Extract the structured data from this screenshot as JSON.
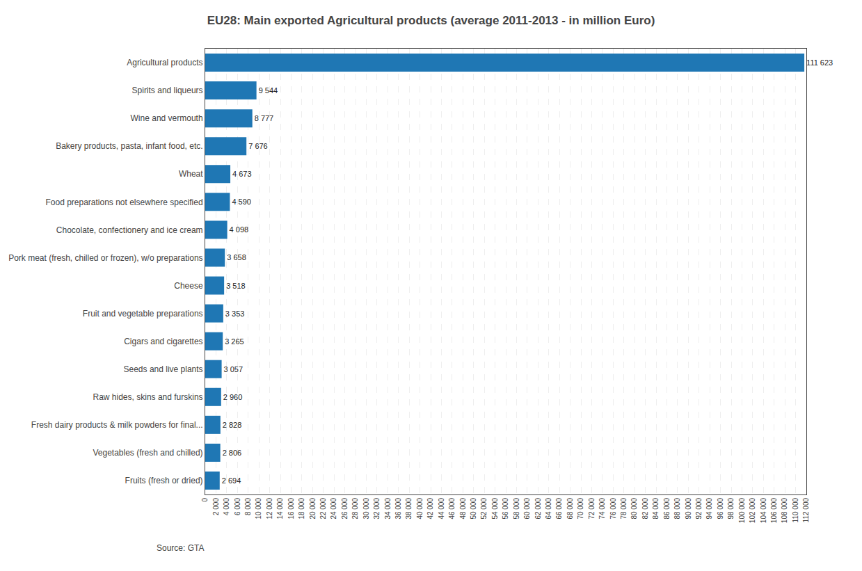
{
  "chart_data": {
    "type": "bar",
    "orientation": "horizontal",
    "title": "EU28: Main exported Agricultural products (average 2011-2013 - in million Euro)",
    "categories": [
      "Agricultural products",
      "Spirits and liqueurs",
      "Wine and vermouth",
      "Bakery products, pasta, infant food, etc.",
      "Wheat",
      "Food preparations not elsewhere specified",
      "Chocolate, confectionery and ice cream",
      "Pork meat (fresh, chilled or frozen), w/o preparations",
      "Cheese",
      "Fruit and vegetable preparations",
      "Cigars and cigarettes",
      "Seeds and live plants",
      "Raw hides, skins and furskins",
      "Fresh dairy products & milk powders for final...",
      "Vegetables (fresh and chilled)",
      "Fruits (fresh or dried)"
    ],
    "values": [
      111623,
      9544,
      8777,
      7676,
      4673,
      4590,
      4098,
      3658,
      3518,
      3353,
      3265,
      3057,
      2960,
      2828,
      2806,
      2694
    ],
    "value_labels": [
      "111 623",
      "9 544",
      "8 777",
      "7 676",
      "4 673",
      "4 590",
      "4 098",
      "3 658",
      "3 518",
      "3 353",
      "3 265",
      "3 057",
      "2 960",
      "2 828",
      "2 806",
      "2 694"
    ],
    "data_labels": true,
    "xlim": [
      0,
      112000
    ],
    "xticks": [
      0,
      {
        "value": 2000,
        "label": "2 000"
      },
      {
        "value": 4000,
        "label": "4 000"
      },
      {
        "value": 6000,
        "label": "6 000"
      },
      {
        "value": 8000,
        "label": "8 000"
      },
      {
        "value": 10000,
        "label": "10 000"
      },
      {
        "value": 12000,
        "label": "12 000"
      },
      {
        "value": 14000,
        "label": "14 000"
      },
      {
        "value": 16000,
        "label": "16 000"
      },
      {
        "value": 18000,
        "label": "18 000"
      },
      {
        "value": 20000,
        "label": "20 000"
      },
      {
        "value": 22000,
        "label": "22 000"
      },
      {
        "value": 24000,
        "label": "24 000"
      },
      {
        "value": 26000,
        "label": "26 000"
      },
      {
        "value": 28000,
        "label": "28 000"
      },
      {
        "value": 30000,
        "label": "30 000"
      },
      {
        "value": 32000,
        "label": "32 000"
      },
      {
        "value": 34000,
        "label": "34 000"
      },
      {
        "value": 36000,
        "label": "36 000"
      },
      {
        "value": 38000,
        "label": "38 000"
      },
      {
        "value": 40000,
        "label": "40 000"
      },
      {
        "value": 42000,
        "label": "42 000"
      },
      {
        "value": 44000,
        "label": "44 000"
      },
      {
        "value": 46000,
        "label": "46 000"
      },
      {
        "value": 48000,
        "label": "48 000"
      },
      {
        "value": 50000,
        "label": "50 000"
      },
      {
        "value": 52000,
        "label": "52 000"
      },
      {
        "value": 54000,
        "label": "54 000"
      },
      {
        "value": 56000,
        "label": "56 000"
      },
      {
        "value": 58000,
        "label": "58 000"
      },
      {
        "value": 60000,
        "label": "60 000"
      },
      {
        "value": 62000,
        "label": "62 000"
      },
      {
        "value": 64000,
        "label": "64 000"
      },
      {
        "value": 66000,
        "label": "66 000"
      },
      {
        "value": 68000,
        "label": "68 000"
      },
      {
        "value": 70000,
        "label": "70 000"
      },
      {
        "value": 72000,
        "label": "72 000"
      },
      {
        "value": 74000,
        "label": "74 000"
      },
      {
        "value": 76000,
        "label": "76 000"
      },
      {
        "value": 78000,
        "label": "78 000"
      },
      {
        "value": 80000,
        "label": "80 000"
      },
      {
        "value": 82000,
        "label": "82 000"
      },
      {
        "value": 84000,
        "label": "84 000"
      },
      {
        "value": 86000,
        "label": "86 000"
      },
      {
        "value": 88000,
        "label": "88 000"
      },
      {
        "value": 90000,
        "label": "90 000"
      },
      {
        "value": 92000,
        "label": "92 000"
      },
      {
        "value": 94000,
        "label": "94 000"
      },
      {
        "value": 96000,
        "label": "96 000"
      },
      {
        "value": 98000,
        "label": "98 000"
      },
      {
        "value": 100000,
        "label": "100 000"
      },
      {
        "value": 102000,
        "label": "102 000"
      },
      {
        "value": 104000,
        "label": "104 000"
      },
      {
        "value": 106000,
        "label": "106 000"
      },
      {
        "value": 108000,
        "label": "108 000"
      },
      {
        "value": 110000,
        "label": "110 000"
      },
      {
        "value": 112000,
        "label": "112 000"
      }
    ],
    "grid": true,
    "annotations": [
      {
        "text": "Source: GTA"
      }
    ]
  }
}
